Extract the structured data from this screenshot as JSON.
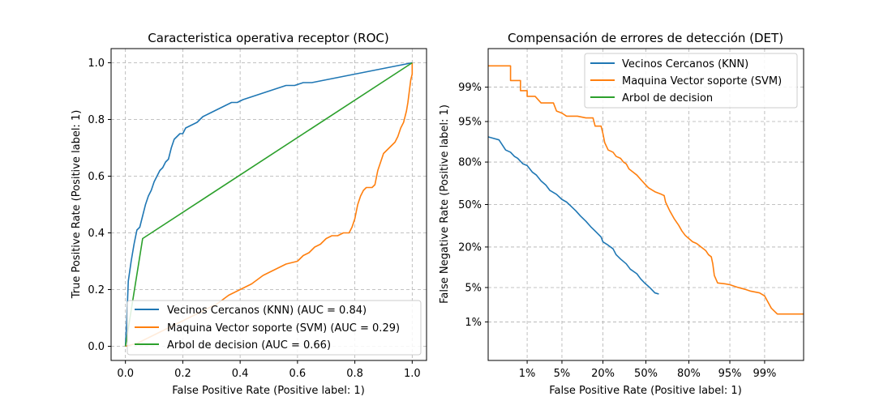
{
  "chart_data": [
    {
      "type": "line",
      "title": "Caracteristica operativa receptor (ROC)",
      "xlabel": "False Positive Rate (Positive label: 1)",
      "ylabel": "True Positive Rate (Positive label: 1)",
      "xlim": [
        -0.05,
        1.05
      ],
      "ylim": [
        -0.05,
        1.05
      ],
      "xticks": [
        0.0,
        0.2,
        0.4,
        0.6,
        0.8,
        1.0
      ],
      "xtick_labels": [
        "0.0",
        "0.2",
        "0.4",
        "0.6",
        "0.8",
        "1.0"
      ],
      "yticks": [
        0.0,
        0.2,
        0.4,
        0.6,
        0.8,
        1.0
      ],
      "ytick_labels": [
        "0.0",
        "0.2",
        "0.4",
        "0.6",
        "0.8",
        "1.0"
      ],
      "grid": true,
      "legend": "lower-right",
      "series": [
        {
          "name": "Vecinos Cercanos (KNN) (AUC = 0.84)",
          "color": "#1f77b4",
          "points": [
            [
              0,
              0
            ],
            [
              0.005,
              0.1
            ],
            [
              0.01,
              0.23
            ],
            [
              0.02,
              0.3
            ],
            [
              0.03,
              0.36
            ],
            [
              0.04,
              0.41
            ],
            [
              0.05,
              0.42
            ],
            [
              0.06,
              0.46
            ],
            [
              0.07,
              0.5
            ],
            [
              0.08,
              0.53
            ],
            [
              0.09,
              0.55
            ],
            [
              0.1,
              0.58
            ],
            [
              0.11,
              0.6
            ],
            [
              0.12,
              0.62
            ],
            [
              0.13,
              0.63
            ],
            [
              0.14,
              0.65
            ],
            [
              0.15,
              0.66
            ],
            [
              0.16,
              0.7
            ],
            [
              0.17,
              0.73
            ],
            [
              0.18,
              0.74
            ],
            [
              0.19,
              0.75
            ],
            [
              0.2,
              0.75
            ],
            [
              0.21,
              0.77
            ],
            [
              0.23,
              0.78
            ],
            [
              0.25,
              0.79
            ],
            [
              0.27,
              0.81
            ],
            [
              0.29,
              0.82
            ],
            [
              0.31,
              0.83
            ],
            [
              0.33,
              0.84
            ],
            [
              0.35,
              0.85
            ],
            [
              0.37,
              0.86
            ],
            [
              0.39,
              0.86
            ],
            [
              0.41,
              0.87
            ],
            [
              0.44,
              0.88
            ],
            [
              0.47,
              0.89
            ],
            [
              0.5,
              0.9
            ],
            [
              0.53,
              0.91
            ],
            [
              0.56,
              0.92
            ],
            [
              0.59,
              0.92
            ],
            [
              0.62,
              0.93
            ],
            [
              0.65,
              0.93
            ],
            [
              1.0,
              1.0
            ]
          ]
        },
        {
          "name": "Maquina Vector soporte (SVM) (AUC = 0.29)",
          "color": "#ff7f0e",
          "points": [
            [
              0,
              0
            ],
            [
              0.04,
              0.01
            ],
            [
              0.08,
              0.03
            ],
            [
              0.12,
              0.05
            ],
            [
              0.16,
              0.07
            ],
            [
              0.2,
              0.09
            ],
            [
              0.24,
              0.11
            ],
            [
              0.28,
              0.13
            ],
            [
              0.32,
              0.15
            ],
            [
              0.36,
              0.18
            ],
            [
              0.4,
              0.2
            ],
            [
              0.44,
              0.22
            ],
            [
              0.48,
              0.25
            ],
            [
              0.52,
              0.27
            ],
            [
              0.56,
              0.29
            ],
            [
              0.6,
              0.3
            ],
            [
              0.62,
              0.32
            ],
            [
              0.64,
              0.33
            ],
            [
              0.66,
              0.35
            ],
            [
              0.68,
              0.36
            ],
            [
              0.7,
              0.38
            ],
            [
              0.72,
              0.39
            ],
            [
              0.74,
              0.39
            ],
            [
              0.76,
              0.4
            ],
            [
              0.78,
              0.4
            ],
            [
              0.79,
              0.42
            ],
            [
              0.8,
              0.45
            ],
            [
              0.81,
              0.5
            ],
            [
              0.82,
              0.53
            ],
            [
              0.83,
              0.55
            ],
            [
              0.84,
              0.56
            ],
            [
              0.86,
              0.56
            ],
            [
              0.87,
              0.57
            ],
            [
              0.88,
              0.62
            ],
            [
              0.89,
              0.65
            ],
            [
              0.9,
              0.68
            ],
            [
              0.92,
              0.7
            ],
            [
              0.94,
              0.72
            ],
            [
              0.95,
              0.74
            ],
            [
              0.96,
              0.77
            ],
            [
              0.97,
              0.79
            ],
            [
              0.98,
              0.83
            ],
            [
              0.985,
              0.86
            ],
            [
              0.99,
              0.9
            ],
            [
              0.995,
              0.94
            ],
            [
              1.0,
              0.96
            ],
            [
              1.0,
              1.0
            ]
          ]
        },
        {
          "name": "Arbol de decision (AUC = 0.66)",
          "color": "#2ca02c",
          "points": [
            [
              0,
              0
            ],
            [
              0.06,
              0.38
            ],
            [
              1.0,
              1.0
            ]
          ]
        }
      ]
    },
    {
      "type": "line",
      "title": "Compensación de errores de detección (DET)",
      "xlabel": "False Positive Rate (Positive label: 1)",
      "ylabel": "False Negative Rate (Positive label: 1)",
      "xscale": "probit",
      "yscale": "probit",
      "xlim": [
        0.001,
        0.999
      ],
      "ylim": [
        0.001,
        0.999
      ],
      "xticks": [
        0.01,
        0.05,
        0.2,
        0.5,
        0.8,
        0.95,
        0.99
      ],
      "xtick_labels": [
        "1%",
        "5%",
        "20%",
        "50%",
        "80%",
        "95%",
        "99%"
      ],
      "yticks": [
        0.01,
        0.05,
        0.2,
        0.5,
        0.8,
        0.95,
        0.99
      ],
      "ytick_labels": [
        "1%",
        "5%",
        "20%",
        "50%",
        "80%",
        "95%",
        "99%"
      ],
      "grid": true,
      "legend": "upper-right",
      "series": [
        {
          "name": "Vecinos Cercanos (KNN)",
          "color": "#1f77b4",
          "points": [
            [
              0.001,
              0.91
            ],
            [
              0.002,
              0.9
            ],
            [
              0.003,
              0.86
            ],
            [
              0.004,
              0.85
            ],
            [
              0.005,
              0.83
            ],
            [
              0.006,
              0.82
            ],
            [
              0.008,
              0.79
            ],
            [
              0.01,
              0.78
            ],
            [
              0.013,
              0.74
            ],
            [
              0.016,
              0.72
            ],
            [
              0.02,
              0.68
            ],
            [
              0.025,
              0.65
            ],
            [
              0.03,
              0.61
            ],
            [
              0.04,
              0.58
            ],
            [
              0.05,
              0.54
            ],
            [
              0.06,
              0.52
            ],
            [
              0.07,
              0.49
            ],
            [
              0.085,
              0.45
            ],
            [
              0.1,
              0.41
            ],
            [
              0.12,
              0.37
            ],
            [
              0.14,
              0.33
            ],
            [
              0.16,
              0.3
            ],
            [
              0.19,
              0.26
            ],
            [
              0.2,
              0.23
            ],
            [
              0.23,
              0.21
            ],
            [
              0.26,
              0.19
            ],
            [
              0.28,
              0.16
            ],
            [
              0.31,
              0.14
            ],
            [
              0.35,
              0.12
            ],
            [
              0.38,
              0.1
            ],
            [
              0.43,
              0.085
            ],
            [
              0.46,
              0.07
            ],
            [
              0.49,
              0.06
            ],
            [
              0.53,
              0.05
            ],
            [
              0.57,
              0.04
            ],
            [
              0.6,
              0.038
            ]
          ]
        },
        {
          "name": "Maquina Vector soporte (SVM)",
          "color": "#ff7f0e",
          "points": [
            [
              0.001,
              0.997
            ],
            [
              0.004,
              0.997
            ],
            [
              0.004,
              0.993
            ],
            [
              0.007,
              0.993
            ],
            [
              0.007,
              0.988
            ],
            [
              0.01,
              0.988
            ],
            [
              0.01,
              0.984
            ],
            [
              0.015,
              0.984
            ],
            [
              0.02,
              0.978
            ],
            [
              0.035,
              0.978
            ],
            [
              0.04,
              0.968
            ],
            [
              0.05,
              0.965
            ],
            [
              0.06,
              0.96
            ],
            [
              0.09,
              0.96
            ],
            [
              0.12,
              0.957
            ],
            [
              0.15,
              0.957
            ],
            [
              0.16,
              0.94
            ],
            [
              0.19,
              0.94
            ],
            [
              0.2,
              0.92
            ],
            [
              0.21,
              0.89
            ],
            [
              0.23,
              0.86
            ],
            [
              0.26,
              0.85
            ],
            [
              0.28,
              0.83
            ],
            [
              0.31,
              0.82
            ],
            [
              0.33,
              0.8
            ],
            [
              0.35,
              0.79
            ],
            [
              0.37,
              0.76
            ],
            [
              0.4,
              0.74
            ],
            [
              0.43,
              0.72
            ],
            [
              0.46,
              0.69
            ],
            [
              0.49,
              0.66
            ],
            [
              0.52,
              0.63
            ],
            [
              0.57,
              0.6
            ],
            [
              0.62,
              0.58
            ],
            [
              0.64,
              0.57
            ],
            [
              0.65,
              0.52
            ],
            [
              0.68,
              0.45
            ],
            [
              0.71,
              0.39
            ],
            [
              0.74,
              0.34
            ],
            [
              0.76,
              0.3
            ],
            [
              0.78,
              0.27
            ],
            [
              0.8,
              0.25
            ],
            [
              0.82,
              0.23
            ],
            [
              0.84,
              0.22
            ],
            [
              0.86,
              0.2
            ],
            [
              0.88,
              0.18
            ],
            [
              0.89,
              0.16
            ],
            [
              0.9,
              0.15
            ],
            [
              0.905,
              0.12
            ],
            [
              0.91,
              0.08
            ],
            [
              0.92,
              0.06
            ],
            [
              0.94,
              0.058
            ],
            [
              0.95,
              0.056
            ],
            [
              0.96,
              0.052
            ],
            [
              0.965,
              0.05
            ],
            [
              0.975,
              0.046
            ],
            [
              0.98,
              0.043
            ],
            [
              0.987,
              0.04
            ],
            [
              0.99,
              0.035
            ],
            [
              0.993,
              0.02
            ],
            [
              0.995,
              0.015
            ],
            [
              0.999,
              0.015
            ]
          ]
        },
        {
          "name": "Arbol de decision",
          "color": "#2ca02c",
          "points": []
        }
      ]
    }
  ]
}
